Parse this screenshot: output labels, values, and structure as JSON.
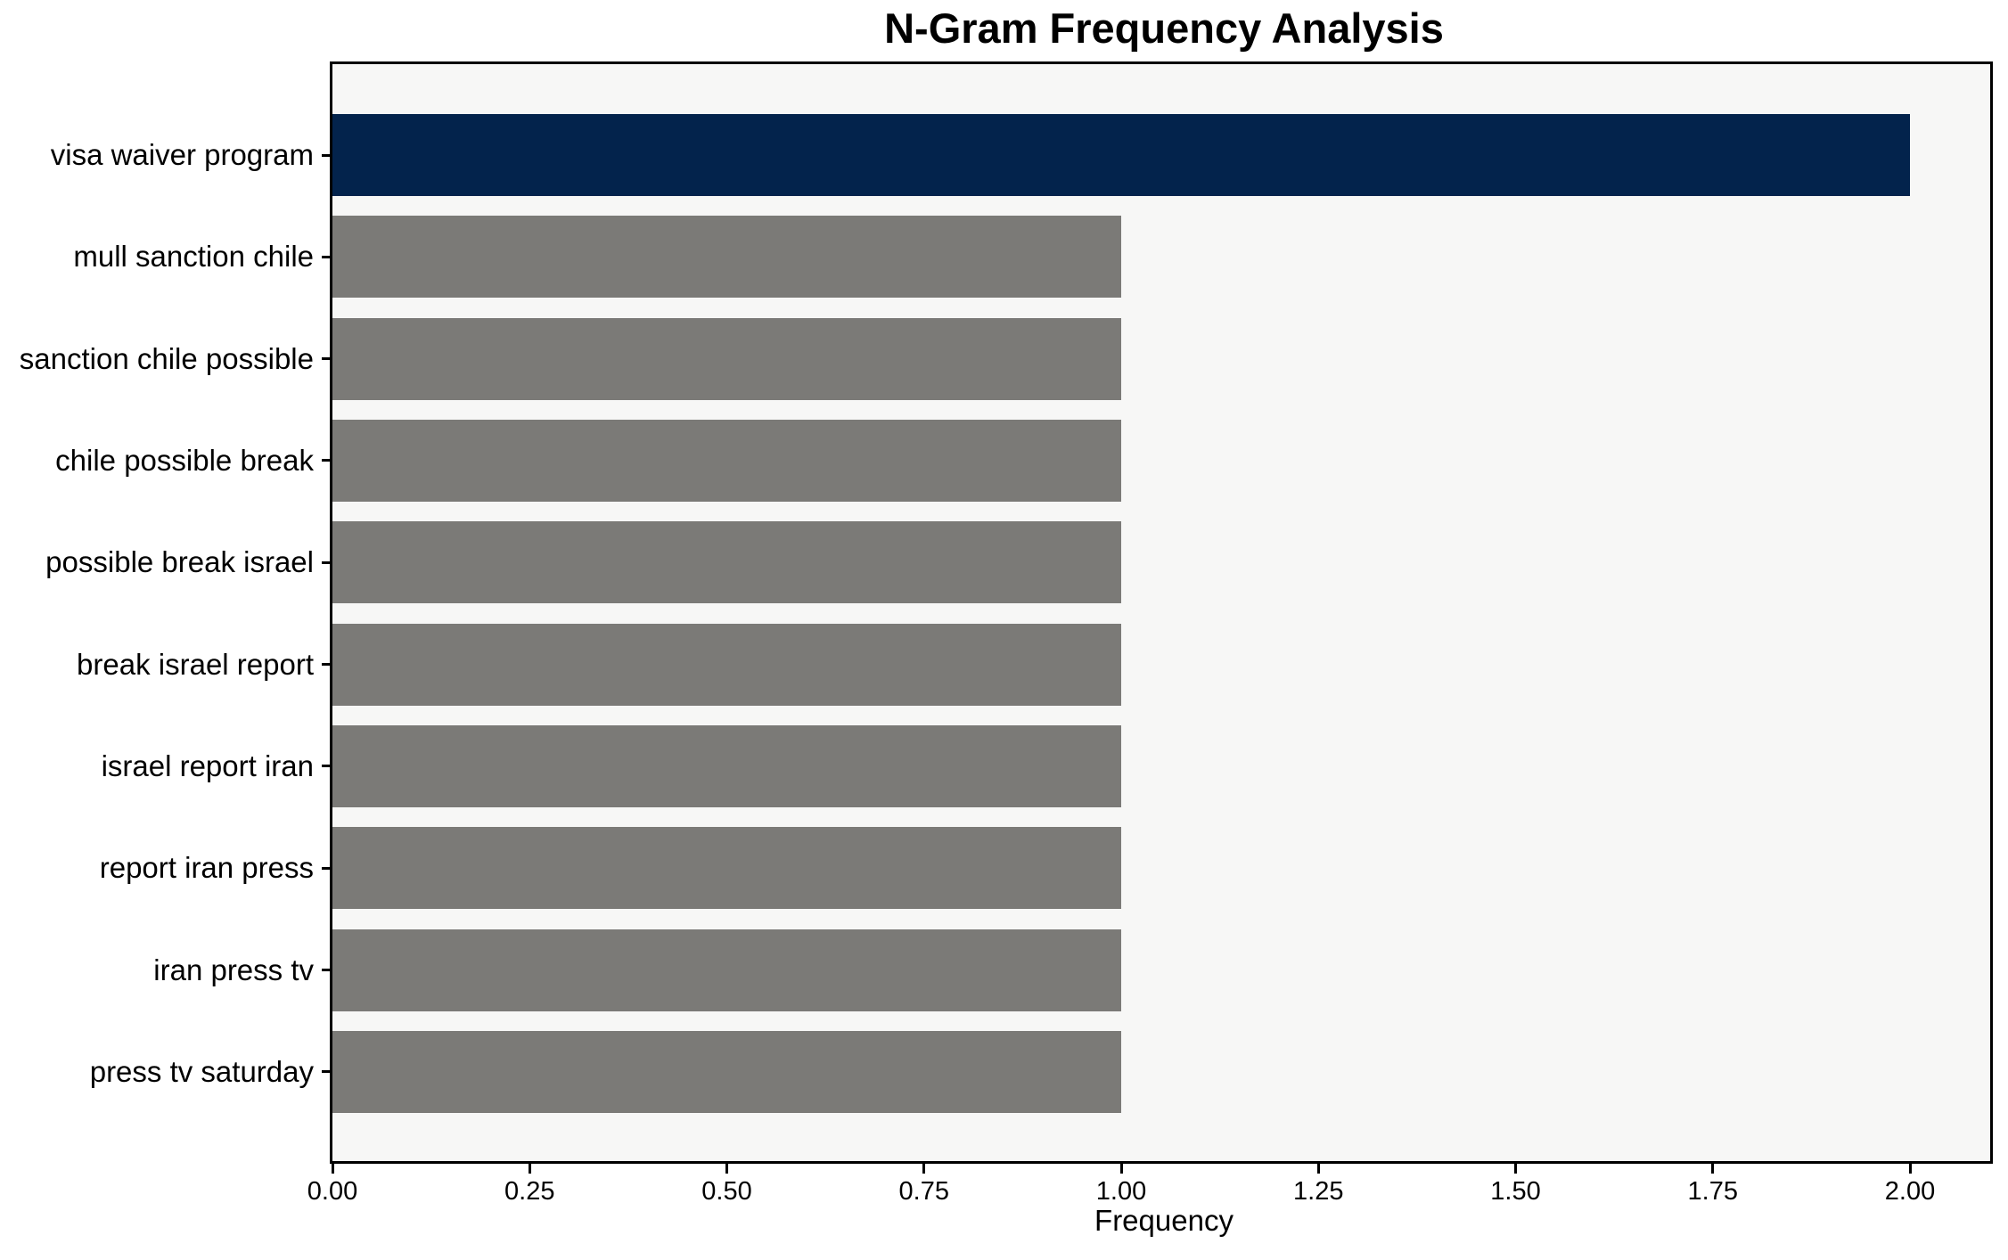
{
  "chart_data": {
    "type": "bar",
    "orientation": "horizontal",
    "title": "N-Gram Frequency Analysis",
    "xlabel": "Frequency",
    "ylabel": "",
    "categories": [
      "visa waiver program",
      "mull sanction chile",
      "sanction chile possible",
      "chile possible break",
      "possible break israel",
      "break israel report",
      "israel report iran",
      "report iran press",
      "iran press tv",
      "press tv saturday"
    ],
    "values": [
      2,
      1,
      1,
      1,
      1,
      1,
      1,
      1,
      1,
      1
    ],
    "bar_colors": [
      "#03234c",
      "#7b7a77",
      "#7b7a77",
      "#7b7a77",
      "#7b7a77",
      "#7b7a77",
      "#7b7a77",
      "#7b7a77",
      "#7b7a77",
      "#7b7a77"
    ],
    "xlim": [
      0,
      2.1
    ],
    "xticks": [
      0,
      0.25,
      0.5,
      0.75,
      1,
      1.25,
      1.5,
      1.75,
      2
    ],
    "xtick_labels": [
      "0.00",
      "0.25",
      "0.50",
      "0.75",
      "1.00",
      "1.25",
      "1.50",
      "1.75",
      "2.00"
    ],
    "grid": false,
    "legend": null,
    "colors": {
      "highlight_bar": "#03234c",
      "default_bar": "#7b7a77",
      "plot_background": "#f7f7f6",
      "figure_background": "#ffffff",
      "text": "#000000"
    }
  }
}
